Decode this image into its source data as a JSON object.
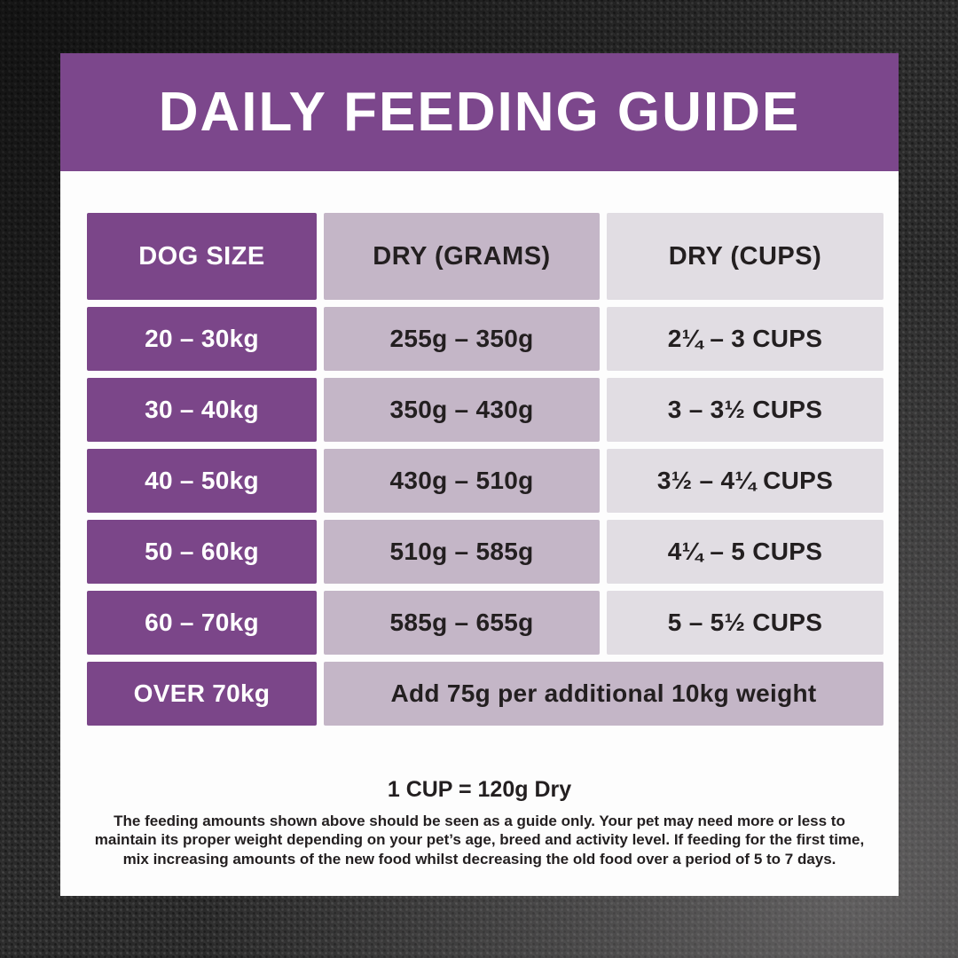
{
  "title": "DAILY FEEDING GUIDE",
  "table": {
    "headers": [
      "DOG SIZE",
      "DRY (GRAMS)",
      "DRY (CUPS)"
    ],
    "rows": [
      {
        "size": "20 – 30kg",
        "grams": "255g – 350g",
        "cups": "2¼ – 3 CUPS"
      },
      {
        "size": "30 – 40kg",
        "grams": "350g – 430g",
        "cups": "3 – 3½ CUPS"
      },
      {
        "size": "40 – 50kg",
        "grams": "430g – 510g",
        "cups": "3½ – 4¼ CUPS"
      },
      {
        "size": "50 – 60kg",
        "grams": "510g – 585g",
        "cups": "4¼ – 5 CUPS"
      },
      {
        "size": "60 – 70kg",
        "grams": "585g – 655g",
        "cups": "5 – 5½ CUPS"
      }
    ],
    "over_row": {
      "size": "OVER 70kg",
      "note": "Add 75g per additional 10kg weight"
    }
  },
  "footer": {
    "cup_note": "1 CUP = 120g Dry",
    "disclaimer": "The feeding amounts shown above should be seen as a guide only. Your pet may need more or less to maintain its proper weight depending on your pet’s age, breed and activity level. If feeding for the first time, mix increasing amounts of the new food whilst decreasing the old food over a period of 5 to 7 days."
  },
  "colors": {
    "banner_purple": "#7C478C",
    "cell_purple": "#7B4689",
    "grams_column": "#C4B6C7",
    "cups_column": "#E1DDE3",
    "text_dark": "#231F20",
    "card_background": "#FDFDFD"
  }
}
